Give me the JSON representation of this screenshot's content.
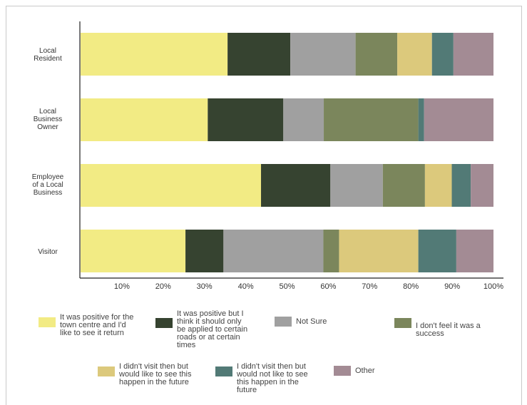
{
  "chart_data": {
    "type": "bar",
    "orientation": "horizontal",
    "stacked": true,
    "categories": [
      "Local Resident",
      "Local Business Owner",
      "Employee of a Local Business",
      "Visitor"
    ],
    "x_ticks": [
      "10%",
      "20%",
      "30%",
      "40%",
      "50%",
      "60%",
      "70%",
      "80%",
      "90%",
      "100%"
    ],
    "xlim": [
      0,
      100
    ],
    "grid": false,
    "legend_position": "bottom",
    "series": [
      {
        "name": "It was positive for the town centre and I'd like to see it return",
        "color": "#f2eb84",
        "values": [
          35.6,
          30.8,
          43.7,
          25.4
        ]
      },
      {
        "name": "It was positive but I think it should only be applied to certain roads or at certain times",
        "color": "#364330",
        "values": [
          15.2,
          18.3,
          16.8,
          9.2
        ]
      },
      {
        "name": "Not Sure",
        "color": "#a0a0a0",
        "values": [
          15.8,
          9.8,
          12.7,
          24.2
        ]
      },
      {
        "name": "I don't feel it was a success",
        "color": "#7b865c",
        "values": [
          10.1,
          22.9,
          10.2,
          3.8
        ]
      },
      {
        "name": "I didn't visit then but would like to see this happen in the future",
        "color": "#dcc97c",
        "values": [
          8.4,
          0,
          6.5,
          19.2
        ]
      },
      {
        "name": "I didn't visit then but would not like to see this happen in the future",
        "color": "#527a76",
        "values": [
          5.2,
          1.4,
          4.6,
          9.2
        ]
      },
      {
        "name": "Other",
        "color": "#a38b94",
        "values": [
          9.7,
          16.8,
          5.5,
          9.0
        ]
      }
    ]
  },
  "labels": {
    "local_resident": [
      "Local",
      "Resident"
    ],
    "local_business_owner": [
      "Local",
      "Business",
      "Owner"
    ],
    "employee": [
      "Employee",
      "of a Local",
      "Business"
    ],
    "visitor": [
      "Visitor"
    ]
  },
  "legend_text": {
    "l1": [
      "It was positive for the",
      "town centre and I'd",
      "like to see it return"
    ],
    "l2": [
      "It was positive but I",
      "think it should only",
      "be applied to certain",
      "roads or at certain",
      "times"
    ],
    "l3": [
      "Not Sure"
    ],
    "l4": [
      "I don't feel it was a",
      "success"
    ],
    "l5": [
      "I didn't visit then but",
      "would like to see this",
      "happen in the future"
    ],
    "l6": [
      "I didn't visit then but",
      "would not like to see",
      "this happen in the",
      "future"
    ],
    "l7": [
      "Other"
    ]
  }
}
